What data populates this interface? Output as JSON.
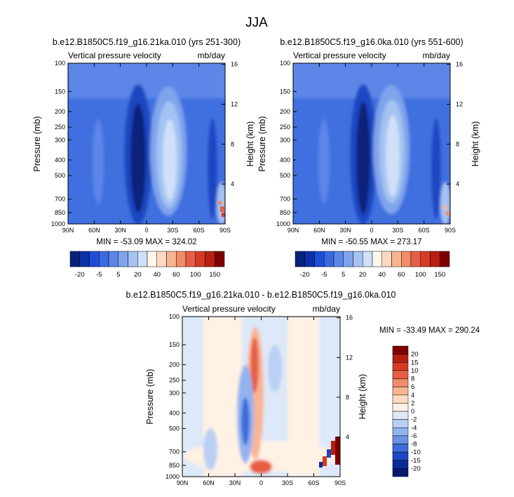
{
  "page": {
    "title": "JJA"
  },
  "colors": {
    "background": "#ffffff",
    "axis": "#000000",
    "neg_deep": "#08217a",
    "zero_band": "#fff7ec",
    "pos_deep": "#7f0000"
  },
  "chart_data": [
    {
      "type": "heatmap",
      "title": "b.e12.B1850C5.f19_g16.21ka.010 (yrs 251-300)",
      "left_label": "Vertical pressure velocity",
      "right_label": "mb/day",
      "ylabel": "Pressure (mb)",
      "y2label": "Height (km)",
      "x_ticks": [
        "90N",
        "60N",
        "30N",
        "0",
        "30S",
        "60S",
        "90S"
      ],
      "y_ticks": [
        "100",
        "150",
        "200",
        "250",
        "300",
        "400",
        "500",
        "700",
        "850",
        "1000"
      ],
      "y2_ticks": [
        "16",
        "12",
        "8",
        "4"
      ],
      "xlim": [
        90,
        -90
      ],
      "ylim": [
        1000,
        100
      ],
      "y_scale": "log",
      "stats": "MIN = -53.09  MAX = 324.02",
      "colorbar": {
        "orientation": "horizontal",
        "labels": [
          "-20",
          "-5",
          "5",
          "20",
          "40",
          "60",
          "100",
          "150"
        ],
        "level_labels_at": [
          1,
          3,
          5,
          7,
          9,
          11,
          13,
          15
        ],
        "colors": [
          "#08217a",
          "#0c31a8",
          "#1f4ed6",
          "#3a6ae2",
          "#5b86e8",
          "#7fa4ec",
          "#a4c2f2",
          "#cfe0f8",
          "#fff7ec",
          "#fcd9bf",
          "#f9b494",
          "#f28b6a",
          "#e65f45",
          "#d63a24",
          "#b81e12",
          "#7f0000"
        ]
      }
    },
    {
      "type": "heatmap",
      "title": "b.e12.B1850C5.f19_g16.0ka.010 (yrs 551-600)",
      "left_label": "Vertical pressure velocity",
      "right_label": "mb/day",
      "ylabel": "Pressure (mb)",
      "y2label": "Height (km)",
      "x_ticks": [
        "90N",
        "60N",
        "30N",
        "0",
        "30S",
        "60S",
        "90S"
      ],
      "y_ticks": [
        "100",
        "150",
        "200",
        "250",
        "300",
        "400",
        "500",
        "700",
        "850",
        "1000"
      ],
      "y2_ticks": [
        "16",
        "12",
        "8",
        "4"
      ],
      "xlim": [
        90,
        -90
      ],
      "ylim": [
        1000,
        100
      ],
      "y_scale": "log",
      "stats": "MIN = -50.55  MAX = 273.17",
      "colorbar": {
        "orientation": "horizontal",
        "labels": [
          "-20",
          "-5",
          "5",
          "20",
          "40",
          "60",
          "100",
          "150"
        ],
        "level_labels_at": [
          1,
          3,
          5,
          7,
          9,
          11,
          13,
          15
        ],
        "colors": [
          "#08217a",
          "#0c31a8",
          "#1f4ed6",
          "#3a6ae2",
          "#5b86e8",
          "#7fa4ec",
          "#a4c2f2",
          "#cfe0f8",
          "#fff7ec",
          "#fcd9bf",
          "#f9b494",
          "#f28b6a",
          "#e65f45",
          "#d63a24",
          "#b81e12",
          "#7f0000"
        ]
      }
    },
    {
      "type": "heatmap",
      "title": "b.e12.B1850C5.f19_g16.21ka.010 - b.e12.B1850C5.f19_g16.0ka.010",
      "left_label": "Vertical pressure velocity",
      "right_label": "mb/day",
      "ylabel": "Pressure (mb)",
      "y2label": "Height (km)",
      "x_ticks": [
        "90N",
        "60N",
        "30N",
        "0",
        "30S",
        "60S",
        "90S"
      ],
      "y_ticks": [
        "100",
        "150",
        "200",
        "250",
        "300",
        "400",
        "500",
        "700",
        "850",
        "1000"
      ],
      "y2_ticks": [
        "16",
        "12",
        "8",
        "4"
      ],
      "xlim": [
        90,
        -90
      ],
      "ylim": [
        1000,
        100
      ],
      "y_scale": "log",
      "stats": "MIN = -33.49  MAX = 290.24",
      "colorbar": {
        "orientation": "vertical",
        "labels": [
          "20",
          "15",
          "10",
          "8",
          "6",
          "4",
          "2",
          "0",
          "-2",
          "-4",
          "-6",
          "-8",
          "-10",
          "-15",
          "-20"
        ],
        "colors": [
          "#7f0000",
          "#b81e12",
          "#d63a24",
          "#e65f45",
          "#f28b6a",
          "#f9b494",
          "#fcd9bf",
          "#fff1e4",
          "#dde9f8",
          "#b9cff4",
          "#92b3ee",
          "#6a92e6",
          "#3d6cdb",
          "#1d46c2",
          "#0b2a99",
          "#061a6e"
        ]
      }
    }
  ]
}
